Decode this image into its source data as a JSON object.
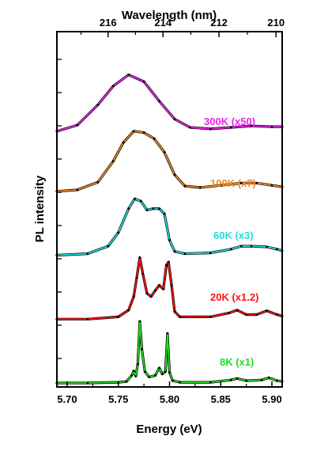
{
  "chart_data": {
    "type": "line",
    "title": "",
    "xlabel": "Energy (eV)",
    "ylabel": "PL intensity",
    "x2label": "Wavelength (nm)",
    "xlim": [
      5.69,
      5.91
    ],
    "x_ticks": [
      "5.70",
      "5.75",
      "5.80",
      "5.85",
      "5.90"
    ],
    "x2_ticks": [
      "216",
      "214",
      "212",
      "210"
    ],
    "y_ticks_labeled": false,
    "grid": false,
    "legend": "none",
    "series": [
      {
        "name": "8K (x1)",
        "color": "#22dd22",
        "offset": 0.0,
        "data_points": [
          [
            5.69,
            0.0
          ],
          [
            5.72,
            0.0
          ],
          [
            5.75,
            0.01
          ],
          [
            5.758,
            0.02
          ],
          [
            5.763,
            0.1
          ],
          [
            5.765,
            0.16
          ],
          [
            5.767,
            0.09
          ],
          [
            5.769,
            0.25
          ],
          [
            5.771,
            0.82
          ],
          [
            5.773,
            0.45
          ],
          [
            5.776,
            0.15
          ],
          [
            5.78,
            0.08
          ],
          [
            5.786,
            0.1
          ],
          [
            5.79,
            0.2
          ],
          [
            5.793,
            0.12
          ],
          [
            5.796,
            0.15
          ],
          [
            5.798,
            0.66
          ],
          [
            5.8,
            0.14
          ],
          [
            5.803,
            0.03
          ],
          [
            5.81,
            0.01
          ],
          [
            5.84,
            0.01
          ],
          [
            5.86,
            0.04
          ],
          [
            5.866,
            0.06
          ],
          [
            5.875,
            0.03
          ],
          [
            5.89,
            0.04
          ],
          [
            5.897,
            0.07
          ],
          [
            5.905,
            0.03
          ],
          [
            5.91,
            0.02
          ]
        ]
      },
      {
        "name": "20K (x1.2)",
        "color": "#ff1111",
        "offset": 0.85,
        "data_points": [
          [
            5.69,
            0.0
          ],
          [
            5.72,
            0.0
          ],
          [
            5.75,
            0.03
          ],
          [
            5.76,
            0.12
          ],
          [
            5.765,
            0.3
          ],
          [
            5.768,
            0.55
          ],
          [
            5.771,
            0.82
          ],
          [
            5.774,
            0.6
          ],
          [
            5.778,
            0.34
          ],
          [
            5.782,
            0.3
          ],
          [
            5.786,
            0.38
          ],
          [
            5.79,
            0.45
          ],
          [
            5.794,
            0.4
          ],
          [
            5.797,
            0.72
          ],
          [
            5.799,
            0.76
          ],
          [
            5.802,
            0.45
          ],
          [
            5.805,
            0.1
          ],
          [
            5.81,
            0.03
          ],
          [
            5.84,
            0.03
          ],
          [
            5.858,
            0.08
          ],
          [
            5.866,
            0.12
          ],
          [
            5.875,
            0.06
          ],
          [
            5.885,
            0.06
          ],
          [
            5.895,
            0.11
          ],
          [
            5.905,
            0.06
          ],
          [
            5.91,
            0.04
          ]
        ]
      },
      {
        "name": "60K (x3)",
        "color": "#22dddd",
        "offset": 1.7,
        "data_points": [
          [
            5.69,
            0.0
          ],
          [
            5.72,
            0.02
          ],
          [
            5.74,
            0.12
          ],
          [
            5.75,
            0.3
          ],
          [
            5.76,
            0.62
          ],
          [
            5.766,
            0.75
          ],
          [
            5.772,
            0.72
          ],
          [
            5.778,
            0.6
          ],
          [
            5.784,
            0.62
          ],
          [
            5.79,
            0.62
          ],
          [
            5.795,
            0.55
          ],
          [
            5.8,
            0.2
          ],
          [
            5.805,
            0.05
          ],
          [
            5.815,
            0.02
          ],
          [
            5.84,
            0.03
          ],
          [
            5.86,
            0.08
          ],
          [
            5.87,
            0.12
          ],
          [
            5.88,
            0.12
          ],
          [
            5.895,
            0.11
          ],
          [
            5.905,
            0.08
          ],
          [
            5.91,
            0.06
          ]
        ]
      },
      {
        "name": "100K (x7)",
        "color": "#ee8822",
        "offset": 2.55,
        "data_points": [
          [
            5.69,
            0.0
          ],
          [
            5.71,
            0.02
          ],
          [
            5.73,
            0.12
          ],
          [
            5.745,
            0.4
          ],
          [
            5.755,
            0.65
          ],
          [
            5.765,
            0.8
          ],
          [
            5.775,
            0.78
          ],
          [
            5.785,
            0.7
          ],
          [
            5.795,
            0.52
          ],
          [
            5.805,
            0.22
          ],
          [
            5.815,
            0.07
          ],
          [
            5.83,
            0.05
          ],
          [
            5.85,
            0.08
          ],
          [
            5.87,
            0.11
          ],
          [
            5.885,
            0.11
          ],
          [
            5.9,
            0.08
          ],
          [
            5.91,
            0.06
          ]
        ]
      },
      {
        "name": "300K (x50)",
        "color": "#ee22ee",
        "offset": 3.35,
        "data_points": [
          [
            5.69,
            0.0
          ],
          [
            5.71,
            0.08
          ],
          [
            5.73,
            0.35
          ],
          [
            5.745,
            0.6
          ],
          [
            5.76,
            0.75
          ],
          [
            5.775,
            0.66
          ],
          [
            5.79,
            0.4
          ],
          [
            5.805,
            0.16
          ],
          [
            5.82,
            0.05
          ],
          [
            5.84,
            0.03
          ],
          [
            5.86,
            0.05
          ],
          [
            5.88,
            0.07
          ],
          [
            5.9,
            0.06
          ],
          [
            5.91,
            0.06
          ]
        ]
      }
    ]
  }
}
